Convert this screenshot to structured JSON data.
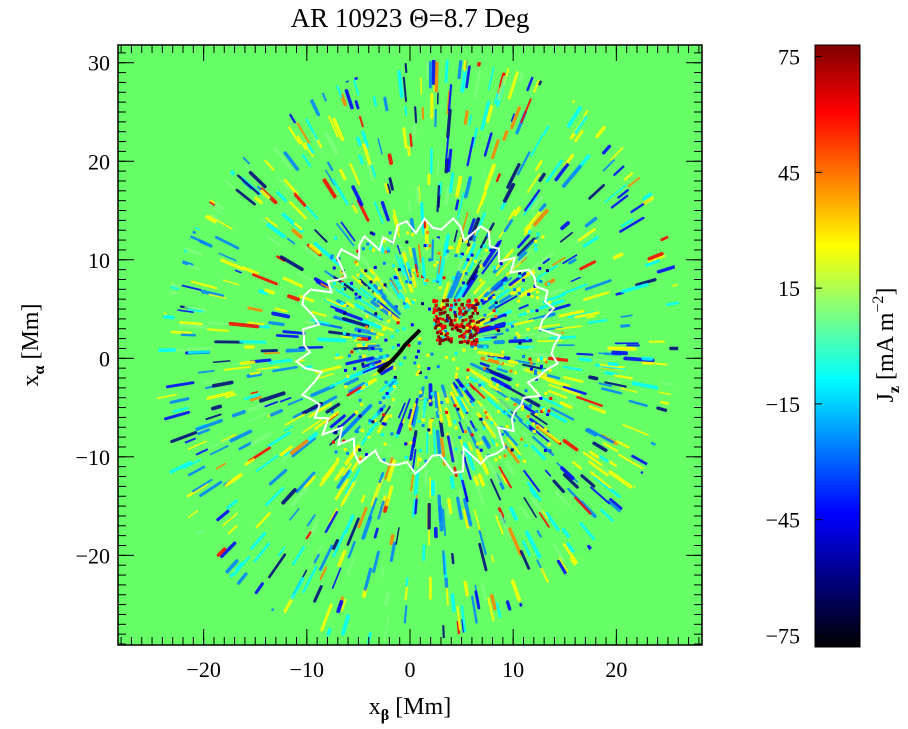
{
  "chart_data": {
    "type": "heatmap",
    "title": "AR 10923 Θ=8.7 Deg",
    "x_label": {
      "symbol": "x",
      "subscript": "β",
      "unit": "[Mm]"
    },
    "y_label": {
      "symbol": "x",
      "subscript": "α",
      "unit": "[Mm]"
    },
    "colorbar_label": {
      "symbol": "J",
      "subscript": "z",
      "unit": "[mA m",
      "superscript": "−2",
      "close": "]"
    },
    "xlim": [
      -28.3,
      28.3
    ],
    "ylim": [
      -29.1,
      31.8
    ],
    "xticks": [
      {
        "value": -20,
        "label": "−20"
      },
      {
        "value": -10,
        "label": "−10"
      },
      0,
      10,
      20
    ],
    "yticks": [
      {
        "value": -20,
        "label": "−20"
      },
      {
        "value": -10,
        "label": "−10"
      },
      0,
      10,
      20,
      30
    ],
    "clim": [
      -78,
      78
    ],
    "cticks": [
      {
        "value": -75,
        "label": "−75"
      },
      {
        "value": -45,
        "label": "−45"
      },
      {
        "value": -15,
        "label": "−15"
      },
      15,
      45,
      75
    ],
    "colormap": [
      "#000000",
      "#00007f",
      "#0000ff",
      "#007fff",
      "#00ffff",
      "#7fff7f",
      "#ffff00",
      "#ff7f00",
      "#ff0000",
      "#7f0000"
    ],
    "background_color": "#66ff66"
  }
}
